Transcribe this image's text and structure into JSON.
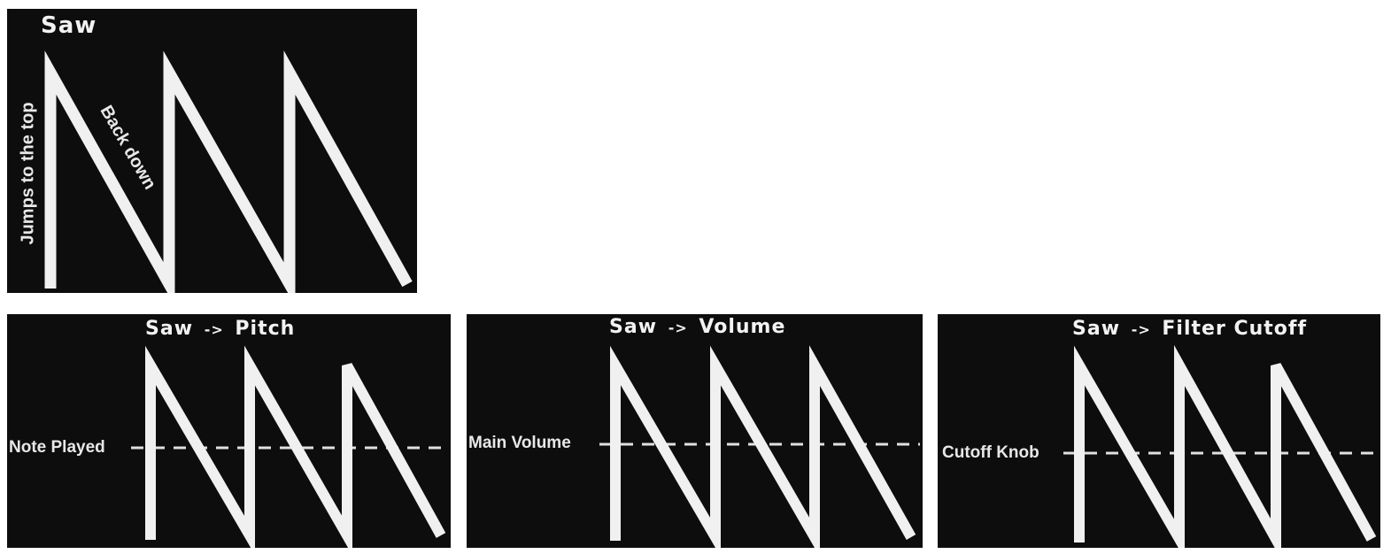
{
  "panels": [
    {
      "title": "Saw",
      "labels": {
        "rise": "Jumps to the top",
        "fall": "Back down"
      },
      "waveform": "sawtooth",
      "cycles": 3
    },
    {
      "title": "Saw",
      "arrow": "->",
      "target": "Pitch",
      "reference_label": "Note Played",
      "waveform": "sawtooth",
      "cycles": 3
    },
    {
      "title": "Saw",
      "arrow": "->",
      "target": "Volume",
      "reference_label": "Main Volume",
      "waveform": "sawtooth",
      "cycles": 3
    },
    {
      "title": "Saw",
      "arrow": "->",
      "target": "Filter Cutoff",
      "reference_label": "Cutoff Knob",
      "waveform": "sawtooth",
      "cycles": 3
    }
  ],
  "colors": {
    "background": "#0d0d0d",
    "wave": "#f0f0f0",
    "text": "#f2f2f2"
  }
}
